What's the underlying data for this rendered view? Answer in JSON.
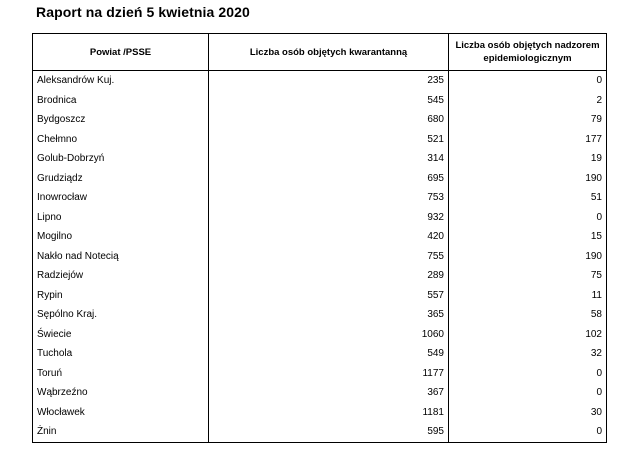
{
  "title": "Raport na dzień 5 kwietnia 2020",
  "table": {
    "headers": [
      "Powiat /PSSE",
      "Liczba osób objętych kwarantanną",
      "Liczba osób objętych nadzorem epidemiologicznym"
    ],
    "rows": [
      {
        "name": "Aleksandrów Kuj.",
        "quarantine": "235",
        "supervision": "0"
      },
      {
        "name": "Brodnica",
        "quarantine": "545",
        "supervision": "2"
      },
      {
        "name": "Bydgoszcz",
        "quarantine": "680",
        "supervision": "79"
      },
      {
        "name": "Chełmno",
        "quarantine": "521",
        "supervision": "177"
      },
      {
        "name": "Golub-Dobrzyń",
        "quarantine": "314",
        "supervision": "19"
      },
      {
        "name": "Grudziądz",
        "quarantine": "695",
        "supervision": "190"
      },
      {
        "name": "Inowrocław",
        "quarantine": "753",
        "supervision": "51"
      },
      {
        "name": "Lipno",
        "quarantine": "932",
        "supervision": "0"
      },
      {
        "name": "Mogilno",
        "quarantine": "420",
        "supervision": "15"
      },
      {
        "name": "Nakło nad Notecią",
        "quarantine": "755",
        "supervision": "190"
      },
      {
        "name": "Radziejów",
        "quarantine": "289",
        "supervision": "75"
      },
      {
        "name": "Rypin",
        "quarantine": "557",
        "supervision": "11"
      },
      {
        "name": "Sępólno Kraj.",
        "quarantine": "365",
        "supervision": "58"
      },
      {
        "name": "Świecie",
        "quarantine": "1060",
        "supervision": "102"
      },
      {
        "name": "Tuchola",
        "quarantine": "549",
        "supervision": "32"
      },
      {
        "name": "Toruń",
        "quarantine": "1177",
        "supervision": "0"
      },
      {
        "name": "Wąbrzeźno",
        "quarantine": "367",
        "supervision": "0"
      },
      {
        "name": "Włocławek",
        "quarantine": "1181",
        "supervision": "30"
      },
      {
        "name": "Żnin",
        "quarantine": "595",
        "supervision": "0"
      }
    ]
  }
}
